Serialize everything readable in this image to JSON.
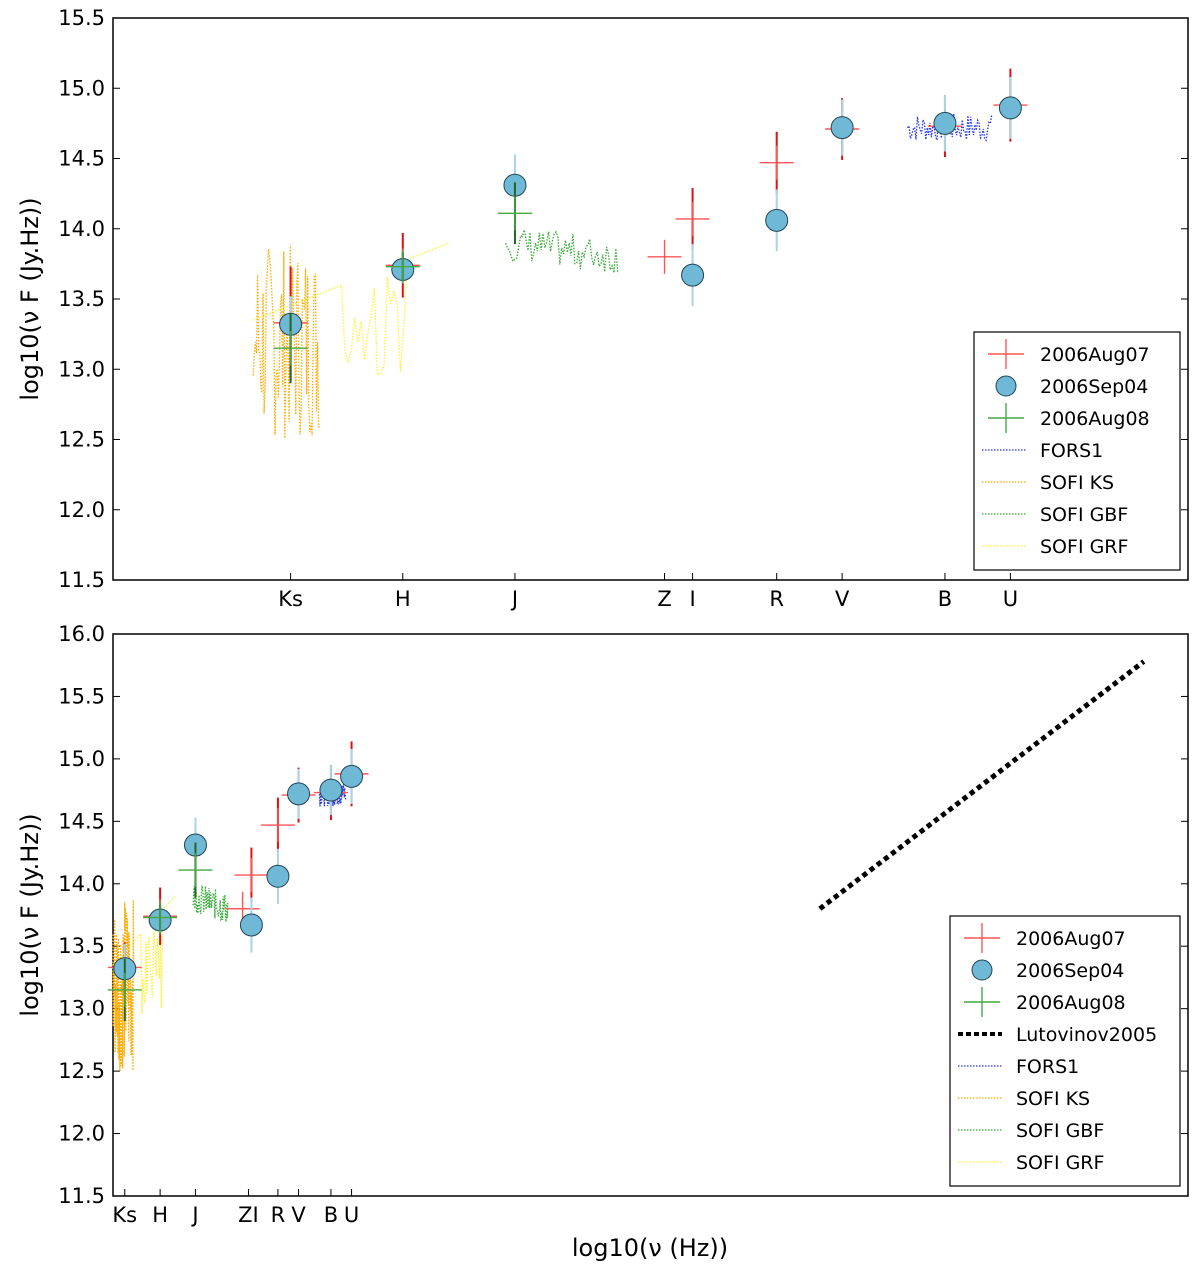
{
  "chart_data": [
    {
      "type": "scatter",
      "panel": "top",
      "ylabel": "log10(ν F (Jy.Hz))",
      "xlabel": "",
      "xlim": [
        13.95,
        15.1
      ],
      "ylim": [
        11.5,
        15.5
      ],
      "yticks": [
        "11.5",
        "12.0",
        "12.5",
        "13.0",
        "13.5",
        "14.0",
        "14.5",
        "15.0",
        "15.5"
      ],
      "xtick_labels": [
        {
          "label": "Ks",
          "x": 14.14
        },
        {
          "label": "H",
          "x": 14.26
        },
        {
          "label": "J",
          "x": 14.38
        },
        {
          "label": "Z",
          "x": 14.54
        },
        {
          "label": "I",
          "x": 14.57
        },
        {
          "label": "R",
          "x": 14.66
        },
        {
          "label": "V",
          "x": 14.73
        },
        {
          "label": "B",
          "x": 14.84
        },
        {
          "label": "U",
          "x": 14.91
        }
      ],
      "series": [
        {
          "name": "2006Aug07",
          "marker": "plus",
          "color": "#ff5555",
          "err_color": "#dd1111",
          "points": [
            {
              "x": 14.14,
              "y": 13.33,
              "err": 0.4
            },
            {
              "x": 14.26,
              "y": 13.74,
              "err": 0.23
            },
            {
              "x": 14.54,
              "y": 13.8,
              "err": 0.0
            },
            {
              "x": 14.57,
              "y": 14.07,
              "err": 0.22
            },
            {
              "x": 14.66,
              "y": 14.47,
              "err": 0.22
            },
            {
              "x": 14.73,
              "y": 14.71,
              "err": 0.22
            },
            {
              "x": 14.84,
              "y": 14.73,
              "err": 0.22
            },
            {
              "x": 14.91,
              "y": 14.88,
              "err": 0.26
            }
          ]
        },
        {
          "name": "2006Sep04",
          "marker": "circle",
          "color": "#6fb8d6",
          "err_color": "#a8d4ea",
          "points": [
            {
              "x": 14.14,
              "y": 13.32,
              "err": 0.2
            },
            {
              "x": 14.26,
              "y": 13.71,
              "err": 0.1
            },
            {
              "x": 14.38,
              "y": 14.31,
              "err": 0.22
            },
            {
              "x": 14.57,
              "y": 13.67,
              "err": 0.22
            },
            {
              "x": 14.66,
              "y": 14.06,
              "err": 0.22
            },
            {
              "x": 14.73,
              "y": 14.72,
              "err": 0.2
            },
            {
              "x": 14.84,
              "y": 14.75,
              "err": 0.2
            },
            {
              "x": 14.91,
              "y": 14.86,
              "err": 0.22
            }
          ]
        },
        {
          "name": "2006Aug08",
          "marker": "plus",
          "color": "#44aa44",
          "err_color": "#226622",
          "points": [
            {
              "x": 14.14,
              "y": 13.15,
              "err": 0.25
            },
            {
              "x": 14.26,
              "y": 13.73,
              "err": 0.1
            },
            {
              "x": 14.38,
              "y": 14.11,
              "err": 0.22
            }
          ]
        }
      ],
      "spectra": [
        {
          "name": "FORS1",
          "color": "#2233ee",
          "x_range": [
            14.8,
            14.89
          ],
          "y_base": 14.72
        },
        {
          "name": "SOFI KS",
          "color": "#ffaa00",
          "x_range": [
            14.1,
            14.17
          ],
          "y_base": 13.2
        },
        {
          "name": "SOFI GBF",
          "color": "#33aa33",
          "x_range": [
            14.37,
            14.49
          ],
          "y_base": 13.9
        },
        {
          "name": "SOFI GRF",
          "color": "#ffee33",
          "x_range": [
            14.1,
            14.31
          ],
          "y_base": 13.3
        }
      ],
      "legend": {
        "position": "lower-right",
        "entries": [
          "2006Aug07",
          "2006Sep04",
          "2006Aug08",
          "FORS1",
          "SOFI KS",
          "SOFI GBF",
          "SOFI GRF"
        ]
      }
    },
    {
      "type": "scatter",
      "panel": "bottom",
      "ylabel": "log10(ν F (Jy.Hz))",
      "xlabel": "log10(ν (Hz))",
      "xlim": [
        14.1,
        17.75
      ],
      "ylim": [
        11.5,
        16.0
      ],
      "yticks": [
        "11.5",
        "12.0",
        "12.5",
        "13.0",
        "13.5",
        "14.0",
        "14.5",
        "15.0",
        "15.5",
        "16.0"
      ],
      "xtick_labels": [
        {
          "label": "Ks",
          "x": 14.14
        },
        {
          "label": "H",
          "x": 14.26
        },
        {
          "label": "J",
          "x": 14.38
        },
        {
          "label": "ZI",
          "x": 14.56
        },
        {
          "label": "R",
          "x": 14.66
        },
        {
          "label": "V",
          "x": 14.73
        },
        {
          "label": "B",
          "x": 14.84
        },
        {
          "label": "U",
          "x": 14.91
        }
      ],
      "series": [
        {
          "name": "2006Aug07",
          "marker": "plus",
          "color": "#ff5555",
          "err_color": "#dd1111",
          "points": [
            {
              "x": 14.14,
              "y": 13.33,
              "err": 0.2
            },
            {
              "x": 14.26,
              "y": 13.74,
              "err": 0.23
            },
            {
              "x": 14.54,
              "y": 13.8,
              "err": 0.0
            },
            {
              "x": 14.57,
              "y": 14.07,
              "err": 0.22
            },
            {
              "x": 14.66,
              "y": 14.47,
              "err": 0.22
            },
            {
              "x": 14.73,
              "y": 14.71,
              "err": 0.22
            },
            {
              "x": 14.84,
              "y": 14.73,
              "err": 0.22
            },
            {
              "x": 14.91,
              "y": 14.88,
              "err": 0.26
            }
          ]
        },
        {
          "name": "2006Sep04",
          "marker": "circle",
          "color": "#6fb8d6",
          "err_color": "#a8d4ea",
          "points": [
            {
              "x": 14.14,
              "y": 13.32,
              "err": 0.2
            },
            {
              "x": 14.26,
              "y": 13.71,
              "err": 0.1
            },
            {
              "x": 14.38,
              "y": 14.31,
              "err": 0.22
            },
            {
              "x": 14.57,
              "y": 13.67,
              "err": 0.22
            },
            {
              "x": 14.66,
              "y": 14.06,
              "err": 0.22
            },
            {
              "x": 14.73,
              "y": 14.72,
              "err": 0.2
            },
            {
              "x": 14.84,
              "y": 14.75,
              "err": 0.2
            },
            {
              "x": 14.91,
              "y": 14.86,
              "err": 0.22
            }
          ]
        },
        {
          "name": "2006Aug08",
          "marker": "plus",
          "color": "#44aa44",
          "err_color": "#226622",
          "points": [
            {
              "x": 14.14,
              "y": 13.15,
              "err": 0.25
            },
            {
              "x": 14.26,
              "y": 13.73,
              "err": 0.1
            },
            {
              "x": 14.38,
              "y": 14.11,
              "err": 0.22
            }
          ]
        }
      ],
      "lutovinov": {
        "name": "Lutovinov2005",
        "x": [
          16.5,
          17.6
        ],
        "y": [
          13.8,
          15.78
        ]
      },
      "spectra": [
        {
          "name": "FORS1",
          "color": "#2233ee",
          "x_range": [
            14.8,
            14.89
          ],
          "y_base": 14.72
        },
        {
          "name": "SOFI KS",
          "color": "#ffaa00",
          "x_range": [
            14.1,
            14.17
          ],
          "y_base": 13.2
        },
        {
          "name": "SOFI GBF",
          "color": "#33aa33",
          "x_range": [
            14.37,
            14.49
          ],
          "y_base": 13.9
        },
        {
          "name": "SOFI GRF",
          "color": "#ffee33",
          "x_range": [
            14.1,
            14.31
          ],
          "y_base": 13.3
        }
      ],
      "legend": {
        "position": "lower-right",
        "entries": [
          "2006Aug07",
          "2006Sep04",
          "2006Aug08",
          "Lutovinov2005",
          "FORS1",
          "SOFI KS",
          "SOFI GBF",
          "SOFI GRF"
        ]
      }
    }
  ]
}
